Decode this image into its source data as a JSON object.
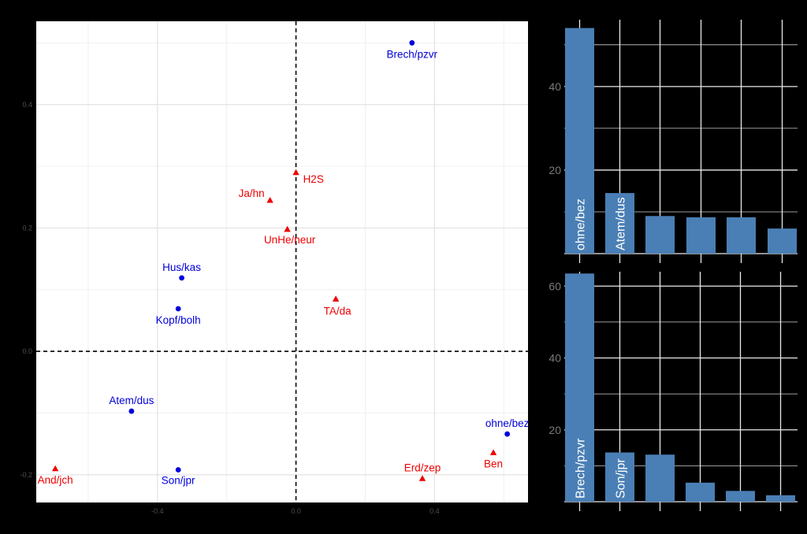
{
  "chart_data": [
    {
      "type": "scatter",
      "title": "",
      "xlabel": "",
      "ylabel": "",
      "xlim": [
        -0.75,
        0.67
      ],
      "ylim": [
        -0.245,
        0.535
      ],
      "x_ticks": [
        -0.4,
        0.0,
        0.4
      ],
      "x_tick_labels": [
        "-0.4",
        "0.0",
        "0.4"
      ],
      "y_ticks": [
        -0.2,
        0.0,
        0.2,
        0.4
      ],
      "y_tick_labels": [
        "-0.2",
        "0.0",
        "0.2",
        "0.4"
      ],
      "grid": true,
      "reference_lines": {
        "x": 0,
        "y": 0,
        "style": "dashed"
      },
      "series": [
        {
          "marker": "circle",
          "color": "#0000DD",
          "points": [
            {
              "label": "Brech/pzvr",
              "x": 0.335,
              "y": 0.5
            },
            {
              "label": "Hus/kas",
              "x": -0.33,
              "y": 0.119
            },
            {
              "label": "Kopf/bolh",
              "x": -0.34,
              "y": 0.069
            },
            {
              "label": "Atem/dus",
              "x": -0.475,
              "y": -0.097
            },
            {
              "label": "ohne/bez",
              "x": 0.61,
              "y": -0.134
            },
            {
              "label": "Son/jpr",
              "x": -0.34,
              "y": -0.192
            }
          ]
        },
        {
          "marker": "triangle",
          "color": "#EE0000",
          "points": [
            {
              "label": "H2S",
              "x": 0.0,
              "y": 0.29
            },
            {
              "label": "Ja/hn",
              "x": -0.075,
              "y": 0.245
            },
            {
              "label": "UnHe/neur",
              "x": -0.025,
              "y": 0.198
            },
            {
              "label": "TA/da",
              "x": 0.115,
              "y": 0.085
            },
            {
              "label": "And/jch",
              "x": -0.695,
              "y": -0.19
            },
            {
              "label": "Erd/zep",
              "x": 0.365,
              "y": -0.206
            },
            {
              "label": "Ben",
              "x": 0.57,
              "y": -0.164
            }
          ]
        }
      ]
    },
    {
      "type": "bar",
      "title": "",
      "ylim": [
        0,
        56
      ],
      "y_ticks": [
        20,
        40
      ],
      "y_tick_labels": [
        "20",
        "40"
      ],
      "bar_color": "#4A7FB5",
      "categories": [
        "ohne/bez",
        "Atem/dus",
        "",
        "",
        "",
        ""
      ],
      "values": [
        54,
        14.5,
        9,
        8.7,
        8.7,
        6
      ]
    },
    {
      "type": "bar",
      "title": "",
      "ylim": [
        0,
        64
      ],
      "y_ticks": [
        20,
        40,
        60
      ],
      "y_tick_labels": [
        "20",
        "40",
        "60"
      ],
      "bar_color": "#4A7FB5",
      "categories": [
        "Brech/pzvr",
        "Son/jpr",
        "",
        "",
        "",
        ""
      ],
      "values": [
        63.5,
        13.7,
        13.1,
        5.3,
        3,
        1.8
      ]
    }
  ]
}
